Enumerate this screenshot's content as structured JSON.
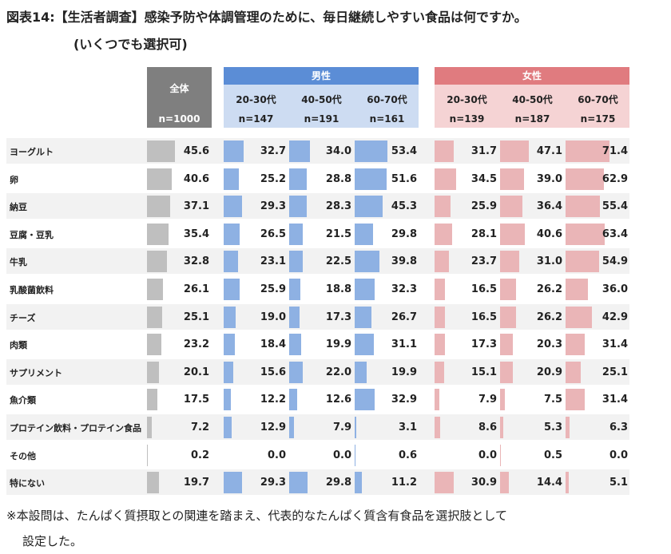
{
  "title": "図表14:【生活者調査】感染予防や体調管理のために、毎日継続しやすい食品は何ですか。",
  "subtitle": "(いくつでも選択可)",
  "note_line1": "※本設問は、たんぱく質摂取との関連を踏まえ、代表的なたんぱく質含有食品を選択肢として",
  "note_line2": "設定した。",
  "colors": {
    "all": "#bfbfbf",
    "male": "#8eb1e3",
    "female": "#eab5b7",
    "male_header": "#5b8dd6",
    "female_header": "#e07b7f"
  },
  "chart_data": {
    "type": "table",
    "title": "",
    "groups": [
      {
        "key": "all",
        "label": "全体",
        "n": "n=1000"
      },
      {
        "key": "male",
        "label": "男性"
      },
      {
        "key": "female",
        "label": "女性"
      }
    ],
    "columns": [
      {
        "key": "all",
        "group": "all",
        "age": "",
        "n": "n=1000"
      },
      {
        "key": "m2030",
        "group": "male",
        "age": "20-30代",
        "n": "n=147"
      },
      {
        "key": "m4050",
        "group": "male",
        "age": "40-50代",
        "n": "n=191"
      },
      {
        "key": "m6070",
        "group": "male",
        "age": "60-70代",
        "n": "n=161"
      },
      {
        "key": "f2030",
        "group": "female",
        "age": "20-30代",
        "n": "n=139"
      },
      {
        "key": "f4050",
        "group": "female",
        "age": "40-50代",
        "n": "n=187"
      },
      {
        "key": "f6070",
        "group": "female",
        "age": "60-70代",
        "n": "n=175"
      }
    ],
    "categories": [
      "ヨーグルト",
      "卵",
      "納豆",
      "豆腐・豆乳",
      "牛乳",
      "乳酸菌飲料",
      "チーズ",
      "肉類",
      "サプリメント",
      "魚介類",
      "プロテイン飲料・プロテイン食品",
      "その他",
      "特にない"
    ],
    "series": [
      {
        "key": "all",
        "values": [
          45.6,
          40.6,
          37.1,
          35.4,
          32.8,
          26.1,
          25.1,
          23.2,
          20.1,
          17.5,
          7.2,
          0.2,
          19.7
        ]
      },
      {
        "key": "m2030",
        "values": [
          32.7,
          25.2,
          29.3,
          26.5,
          23.1,
          25.9,
          19.0,
          18.4,
          15.6,
          12.2,
          12.9,
          0.0,
          29.3
        ]
      },
      {
        "key": "m4050",
        "values": [
          34.0,
          28.8,
          28.3,
          21.5,
          22.5,
          18.8,
          17.3,
          19.9,
          22.0,
          12.6,
          7.9,
          0.0,
          29.8
        ]
      },
      {
        "key": "m6070",
        "values": [
          53.4,
          51.6,
          45.3,
          29.8,
          39.8,
          32.3,
          26.7,
          31.1,
          19.9,
          32.9,
          3.1,
          0.6,
          11.2
        ]
      },
      {
        "key": "f2030",
        "values": [
          31.7,
          34.5,
          25.9,
          28.1,
          23.7,
          16.5,
          16.5,
          17.3,
          15.1,
          7.9,
          8.6,
          0.0,
          30.9
        ]
      },
      {
        "key": "f4050",
        "values": [
          47.1,
          39.0,
          36.4,
          40.6,
          31.0,
          26.2,
          26.2,
          20.3,
          20.9,
          7.5,
          5.3,
          0.5,
          14.4
        ]
      },
      {
        "key": "f6070",
        "values": [
          71.4,
          62.9,
          55.4,
          63.4,
          54.9,
          36.0,
          42.9,
          31.4,
          25.1,
          31.4,
          6.3,
          0.0,
          5.1
        ]
      }
    ]
  }
}
